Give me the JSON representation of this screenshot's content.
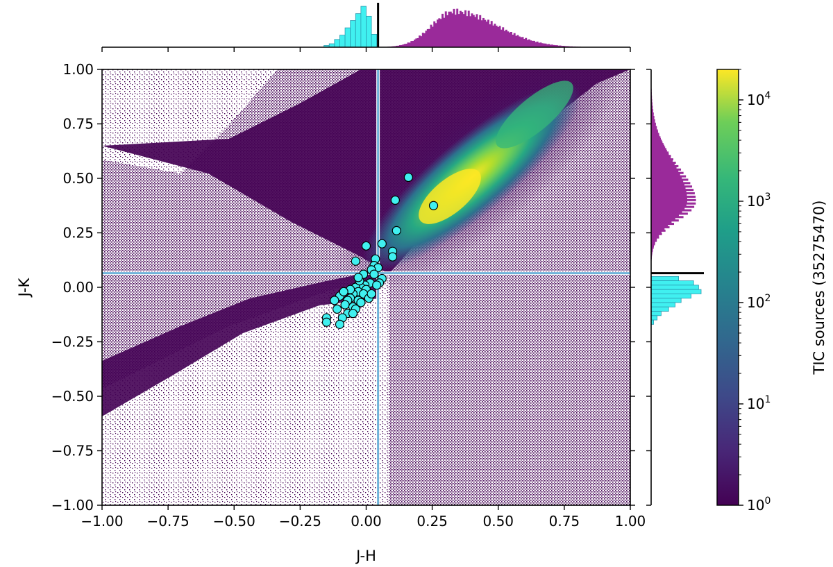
{
  "chart_data": {
    "type": "scatter",
    "xlabel": "J-H",
    "ylabel": "J-K",
    "xlim": [
      -1.0,
      1.0
    ],
    "ylim": [
      -1.0,
      1.0
    ],
    "x_ticks": [
      "−1.00",
      "−0.75",
      "−0.50",
      "−0.25",
      "0.00",
      "0.25",
      "0.50",
      "0.75",
      "1.00"
    ],
    "x_tick_values": [
      -1.0,
      -0.75,
      -0.5,
      -0.25,
      0.0,
      0.25,
      0.5,
      0.75,
      1.0
    ],
    "y_ticks": [
      "−1.00",
      "−0.75",
      "−0.50",
      "−0.25",
      "0.00",
      "0.25",
      "0.50",
      "0.75",
      "1.00"
    ],
    "y_tick_values": [
      -1.0,
      -0.75,
      -0.5,
      -0.25,
      0.0,
      0.25,
      0.5,
      0.75,
      1.0
    ],
    "grid": false,
    "cut_lines": {
      "x": 0.045,
      "y": 0.065
    },
    "density_background": {
      "description_source": "2D histogram of TIC sources, log color scale",
      "main_ridge": {
        "from": [
          0.1,
          0.2
        ],
        "peak": [
          0.33,
          0.4
        ],
        "to": [
          0.65,
          0.82
        ]
      },
      "secondary_branch": {
        "from": [
          -1.0,
          -0.3
        ],
        "to": [
          0.0,
          0.12
        ]
      }
    },
    "colorbar": {
      "label": "TIC sources (35275470)",
      "scale": "log",
      "range": [
        1,
        20000
      ],
      "ticks": [
        1,
        10,
        100,
        1000,
        10000
      ],
      "tick_base": "10",
      "tick_exponents": [
        "0",
        "1",
        "2",
        "3",
        "4"
      ],
      "colormap": "viridis"
    },
    "series": [
      {
        "marker": "circle",
        "color": "#40f0f0",
        "points": [
          [
            0.16,
            0.505
          ],
          [
            0.255,
            0.375
          ],
          [
            0.11,
            0.4
          ],
          [
            0.115,
            0.26
          ],
          [
            0.0,
            0.19
          ],
          [
            0.06,
            0.2
          ],
          [
            0.1,
            0.165
          ],
          [
            0.1,
            0.14
          ],
          [
            -0.04,
            0.12
          ],
          [
            0.035,
            0.13
          ],
          [
            0.03,
            0.1
          ],
          [
            0.045,
            0.09
          ],
          [
            0.02,
            0.08
          ],
          [
            0.03,
            0.06
          ],
          [
            0.06,
            0.04
          ],
          [
            0.05,
            0.02
          ],
          [
            0.015,
            0.02
          ],
          [
            -0.005,
            0.01
          ],
          [
            -0.02,
            0.0
          ],
          [
            0.0,
            -0.01
          ],
          [
            -0.04,
            0.0
          ],
          [
            -0.03,
            -0.02
          ],
          [
            -0.01,
            -0.03
          ],
          [
            -0.05,
            -0.03
          ],
          [
            -0.06,
            -0.05
          ],
          [
            -0.03,
            -0.06
          ],
          [
            -0.07,
            -0.06
          ],
          [
            -0.1,
            -0.04
          ],
          [
            -0.08,
            -0.08
          ],
          [
            -0.05,
            -0.09
          ],
          [
            -0.02,
            -0.07
          ],
          [
            -0.04,
            -0.1
          ],
          [
            -0.07,
            -0.12
          ],
          [
            -0.11,
            -0.1
          ],
          [
            -0.09,
            -0.14
          ],
          [
            -0.15,
            -0.14
          ],
          [
            -0.15,
            -0.16
          ],
          [
            -0.1,
            -0.17
          ],
          [
            -0.05,
            -0.12
          ],
          [
            0.01,
            -0.05
          ],
          [
            -0.025,
            0.03
          ],
          [
            0.02,
            -0.03
          ],
          [
            -0.01,
            0.06
          ],
          [
            -0.06,
            -0.01
          ],
          [
            -0.085,
            -0.02
          ],
          [
            -0.12,
            -0.06
          ],
          [
            -0.03,
            0.045
          ],
          [
            0.04,
            0.01
          ]
        ]
      }
    ],
    "marginals": {
      "top": {
        "axis": "J-H",
        "cut": 0.045,
        "below_cut_color": "#40f0f0",
        "above_cut_color": "#9a2a9a",
        "below_cut_bins": [
          [
            -0.15,
            0.04
          ],
          [
            -0.13,
            0.08
          ],
          [
            -0.11,
            0.18
          ],
          [
            -0.09,
            0.28
          ],
          [
            -0.07,
            0.45
          ],
          [
            -0.05,
            0.62
          ],
          [
            -0.03,
            0.78
          ],
          [
            -0.01,
            0.95
          ],
          [
            0.01,
            0.72
          ],
          [
            0.03,
            0.3
          ]
        ],
        "above_cut_peak": {
          "x": 0.33,
          "relative_height": 0.9
        }
      },
      "right": {
        "axis": "J-K",
        "cut": 0.065,
        "below_cut_color": "#40f0f0",
        "above_cut_color": "#9a2a9a",
        "below_cut_bins": [
          [
            0.04,
            0.55
          ],
          [
            0.02,
            0.85
          ],
          [
            0.0,
            0.95
          ],
          [
            -0.02,
            1.0
          ],
          [
            -0.04,
            0.8
          ],
          [
            -0.06,
            0.6
          ],
          [
            -0.08,
            0.48
          ],
          [
            -0.1,
            0.35
          ],
          [
            -0.12,
            0.2
          ],
          [
            -0.14,
            0.12
          ],
          [
            -0.16,
            0.05
          ]
        ],
        "above_cut_peak": {
          "y": 0.4,
          "relative_height": 0.9
        }
      }
    }
  }
}
